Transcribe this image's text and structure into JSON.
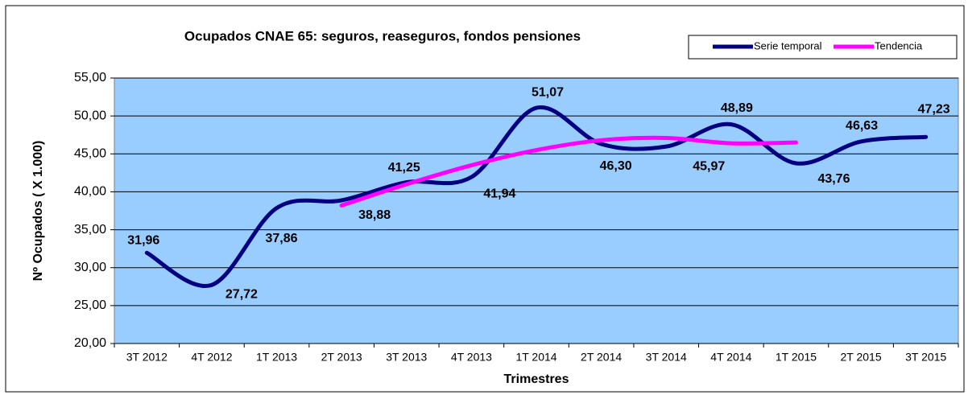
{
  "chart_data": {
    "type": "line",
    "title": "Ocupados CNAE 65: seguros, reaseguros, fondos pensiones",
    "x_label": "Trimestres",
    "y_label": "Nº Ocupados ( X 1.000)",
    "categories": [
      "3T 2012",
      "4T 2012",
      "1T 2013",
      "2T 2013",
      "3T 2013",
      "4T 2013",
      "1T 2014",
      "2T 2014",
      "3T 2014",
      "4T 2014",
      "1T 2015",
      "2T 2015",
      "3T 2015"
    ],
    "series": [
      {
        "name": "Serie temporal",
        "color": "#000080",
        "values": [
          31.96,
          27.72,
          37.86,
          38.88,
          41.25,
          41.94,
          51.07,
          46.3,
          45.97,
          48.89,
          43.76,
          46.63,
          47.23
        ],
        "value_labels": [
          "31,96",
          "27,72",
          "37,86",
          "38,88",
          "41,25",
          "41,94",
          "51,07",
          "46,30",
          "45,97",
          "48,89",
          "43,76",
          "46,63",
          "47,23"
        ]
      },
      {
        "name": "Tendencia",
        "color": "#ff00ff",
        "values": [
          null,
          null,
          null,
          38.2,
          41.0,
          43.5,
          45.5,
          46.8,
          47.1,
          46.4,
          46.5,
          null,
          null
        ]
      }
    ],
    "ylim": [
      20,
      55
    ],
    "yticks": [
      {
        "value": 20,
        "label": "20,00"
      },
      {
        "value": 25,
        "label": "25,00"
      },
      {
        "value": 30,
        "label": "30,00"
      },
      {
        "value": 35,
        "label": "35,00"
      },
      {
        "value": 40,
        "label": "40,00"
      },
      {
        "value": 45,
        "label": "45,00"
      },
      {
        "value": 50,
        "label": "50,00"
      },
      {
        "value": 55,
        "label": "55,00"
      }
    ],
    "grid": true,
    "plot_color": "#99ccff",
    "legend": "top-right"
  }
}
